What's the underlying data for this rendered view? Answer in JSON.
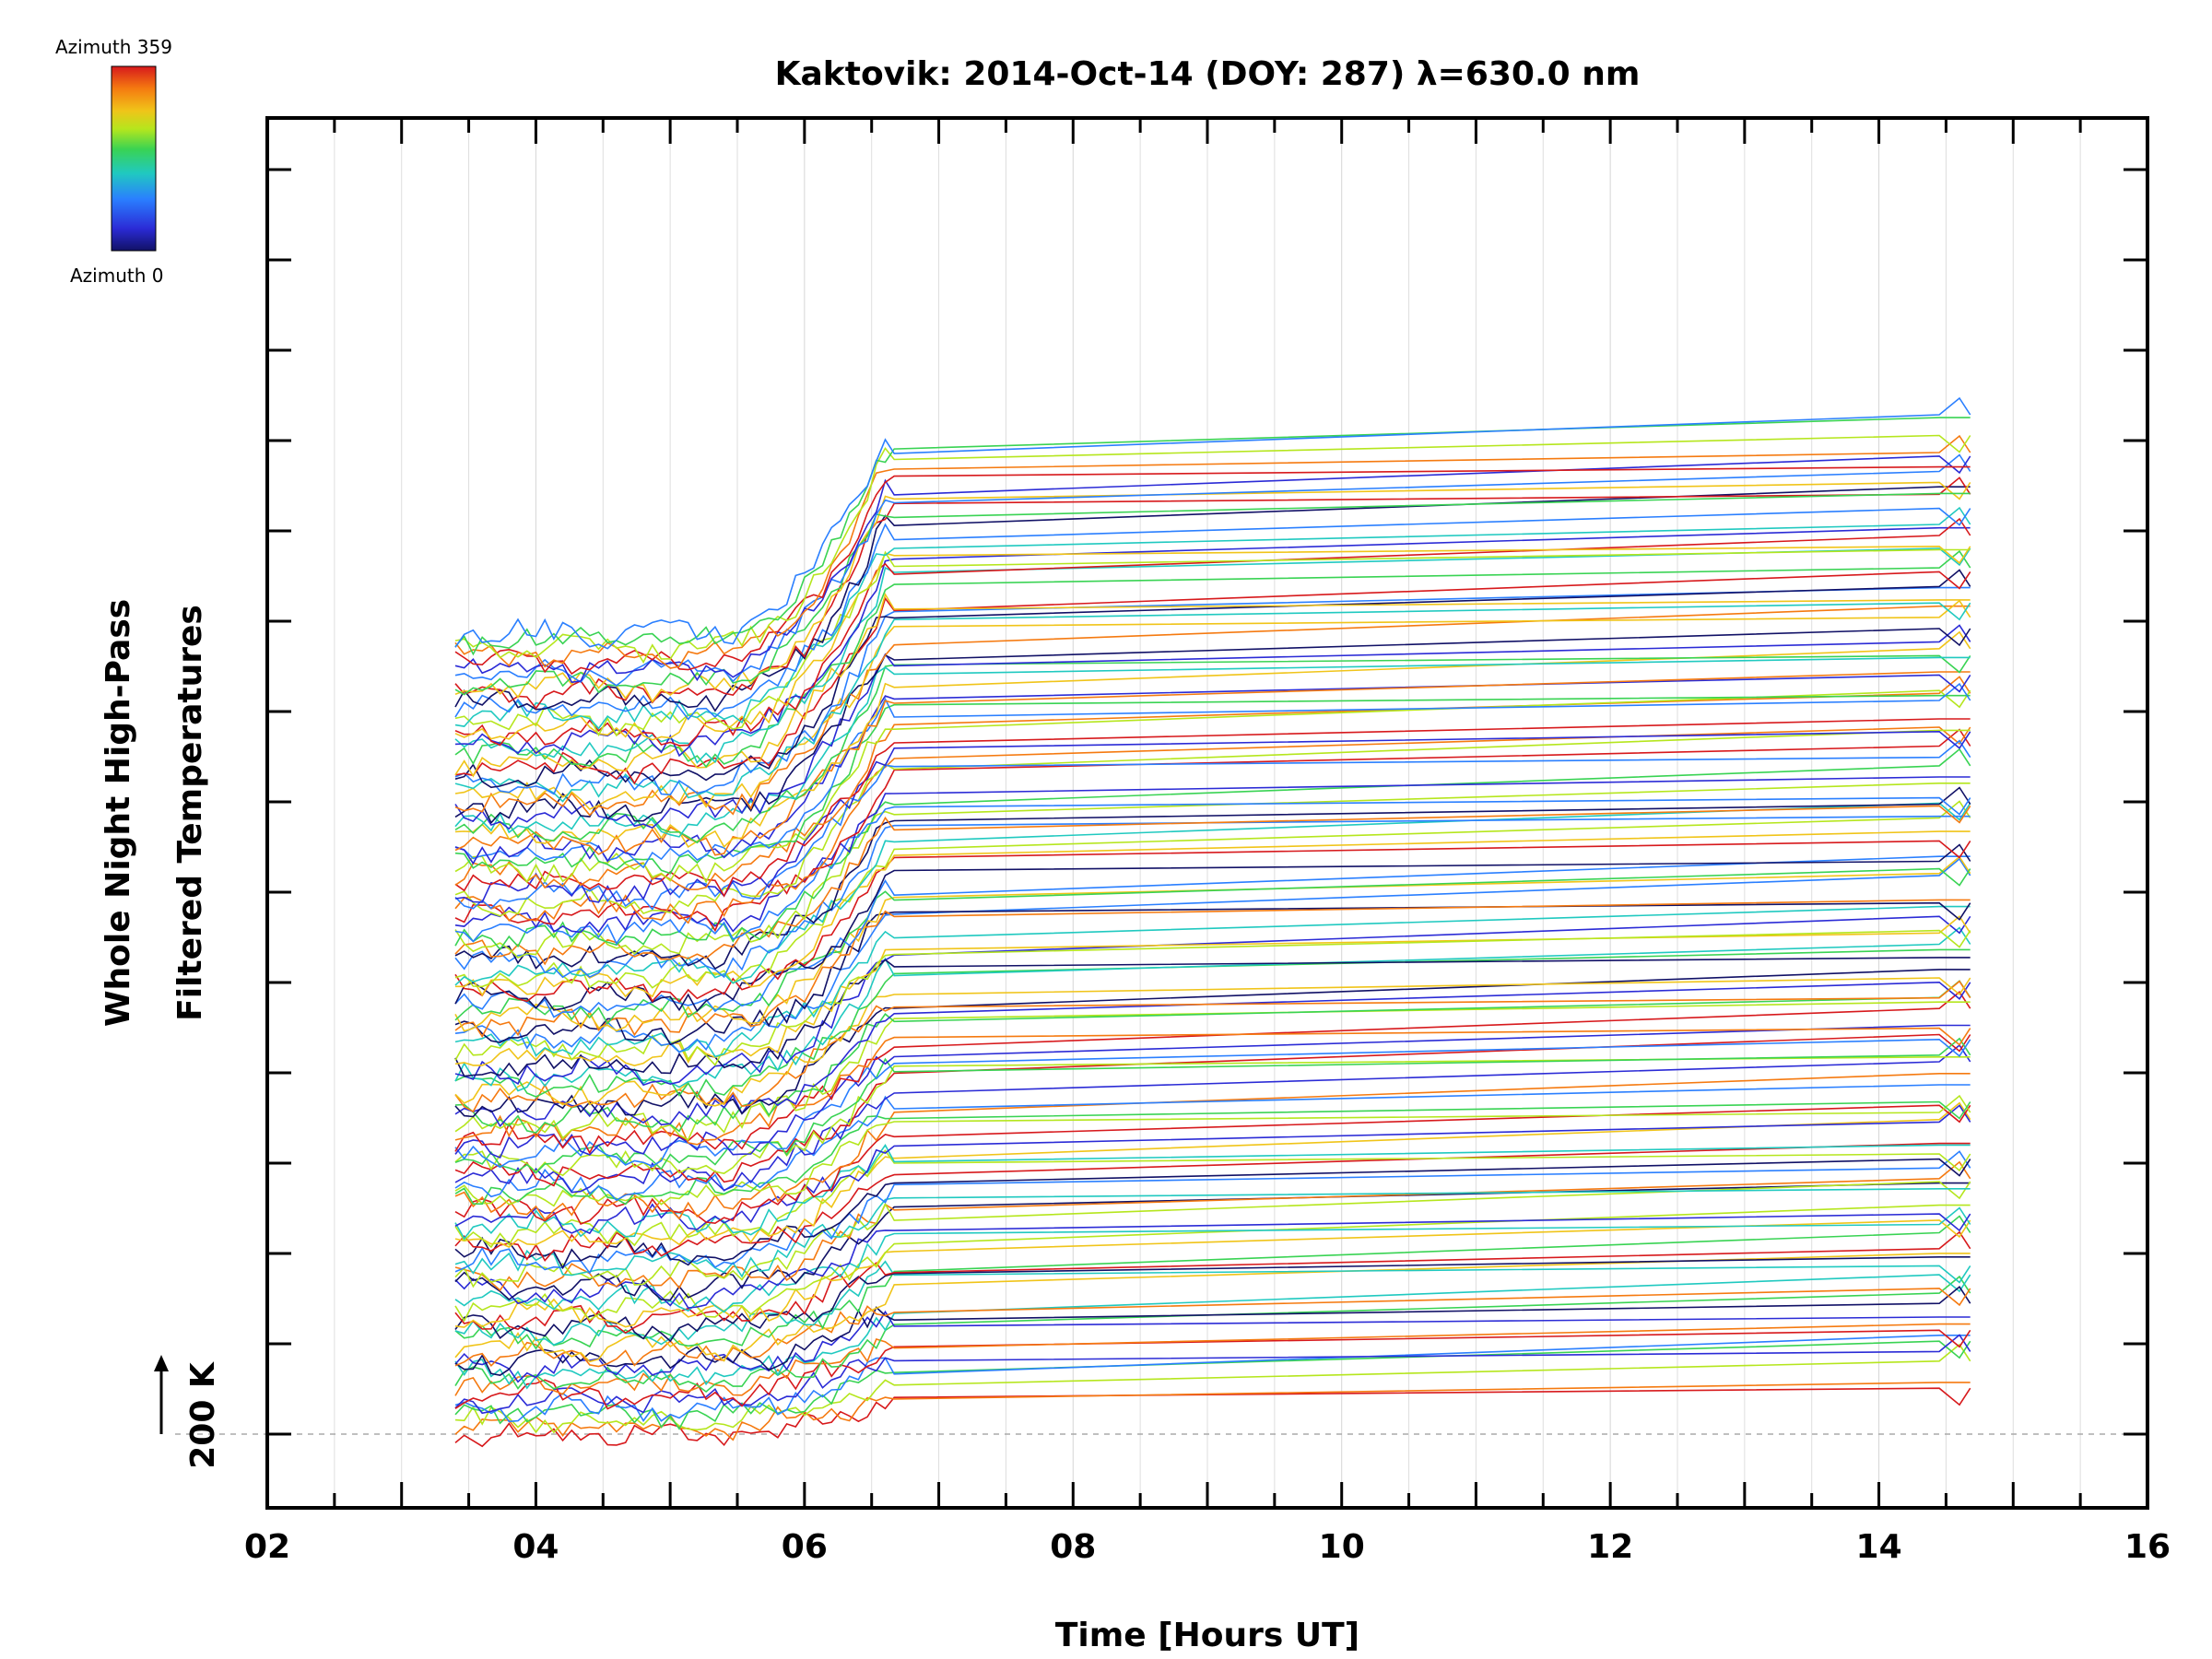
{
  "chart_data": {
    "type": "line",
    "title": "Kaktovik: 2014-Oct-14 (DOY: 287) λ=630.0 nm",
    "xlabel": "Time [Hours UT]",
    "ylabel_line1": "Whole Night High-Pass",
    "ylabel_line2": "Filtered Temperatures",
    "xlim": [
      2,
      16
    ],
    "x_tick_labels": [
      "02",
      "04",
      "06",
      "08",
      "10",
      "12",
      "14",
      "16"
    ],
    "scale_marker": "200 K",
    "colorbar": {
      "label_top": "Azimuth 359",
      "label_bottom": "Azimuth 0",
      "colors": [
        "#d7191c",
        "#f57a10",
        "#f0c419",
        "#b5e61d",
        "#39d353",
        "#20c9c0",
        "#2a7fff",
        "#2b2bd6",
        "#111166"
      ]
    },
    "series_count": 120,
    "series_group_size": 8,
    "series_spacing_k": 100,
    "time_start_hours": 3.4,
    "time_dense_end_hours": 6.7,
    "time_sparse_points_hours": [
      14.45,
      14.6,
      14.68
    ]
  }
}
